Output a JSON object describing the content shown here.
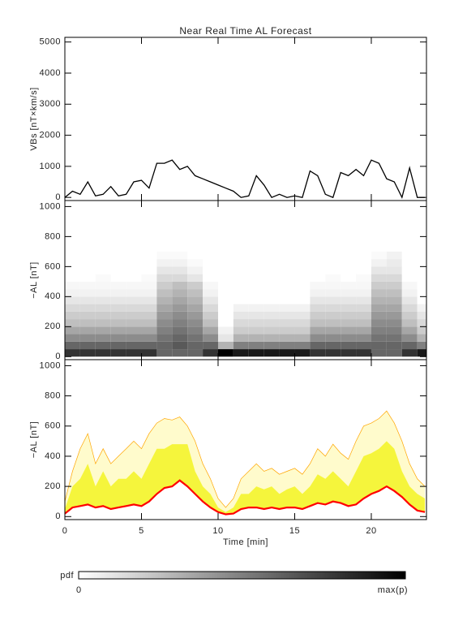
{
  "chart_data": [
    {
      "type": "line",
      "title": "Near Real Time AL Forecast",
      "ylabel": "VBs [nT×km/s]",
      "color": "#000000",
      "x": [
        0,
        0.5,
        1,
        1.5,
        2,
        2.5,
        3,
        3.5,
        4,
        4.5,
        5,
        5.5,
        6,
        6.5,
        7,
        7.5,
        8,
        8.5,
        9,
        9.5,
        10,
        10.5,
        11,
        11.5,
        12,
        12.5,
        13,
        13.5,
        14,
        14.5,
        15,
        15.5,
        16,
        16.5,
        17,
        17.5,
        18,
        18.5,
        19,
        19.5,
        20,
        20.5,
        21,
        21.5,
        22,
        22.5,
        23,
        23.5
      ],
      "values": [
        0,
        200,
        100,
        500,
        50,
        100,
        350,
        50,
        100,
        500,
        550,
        300,
        1100,
        1100,
        1200,
        900,
        1000,
        700,
        600,
        500,
        400,
        300,
        200,
        0,
        50,
        700,
        400,
        0,
        100,
        0,
        50,
        0,
        850,
        700,
        100,
        0,
        800,
        700,
        900,
        700,
        1200,
        1100,
        600,
        500,
        0,
        950,
        0,
        0
      ],
      "xlim": [
        0,
        23.6
      ],
      "ylim": [
        -100,
        5150
      ],
      "yticks": [
        0,
        1000,
        2000,
        3000,
        4000,
        5000
      ]
    },
    {
      "type": "heatmap",
      "ylabel": "−AL [nT]",
      "xbins": [
        0,
        1,
        2,
        3,
        4,
        5,
        6,
        7,
        8,
        9,
        10,
        11,
        12,
        13,
        14,
        15,
        16,
        17,
        18,
        19,
        20,
        21,
        22,
        23,
        24
      ],
      "ybins": [
        0,
        50,
        100,
        150,
        200,
        250,
        300,
        350,
        400,
        450,
        500,
        550,
        600,
        650,
        700
      ],
      "z": [
        [
          0.8,
          0.6,
          0.45,
          0.35,
          0.25,
          0.2,
          0.15,
          0.1,
          0.05,
          0.03,
          0,
          0,
          0,
          0
        ],
        [
          0.8,
          0.6,
          0.45,
          0.35,
          0.25,
          0.2,
          0.15,
          0.1,
          0.05,
          0.03,
          0,
          0,
          0,
          0
        ],
        [
          0.8,
          0.6,
          0.45,
          0.35,
          0.25,
          0.2,
          0.15,
          0.1,
          0.05,
          0.03,
          0.02,
          0,
          0,
          0
        ],
        [
          0.8,
          0.6,
          0.45,
          0.35,
          0.25,
          0.2,
          0.15,
          0.1,
          0.05,
          0.03,
          0,
          0,
          0,
          0
        ],
        [
          0.8,
          0.6,
          0.45,
          0.35,
          0.25,
          0.2,
          0.15,
          0.1,
          0.05,
          0.03,
          0,
          0,
          0,
          0
        ],
        [
          0.8,
          0.6,
          0.45,
          0.35,
          0.25,
          0.2,
          0.15,
          0.1,
          0.05,
          0.03,
          0.02,
          0,
          0,
          0
        ],
        [
          0.6,
          0.6,
          0.55,
          0.5,
          0.45,
          0.4,
          0.35,
          0.3,
          0.25,
          0.2,
          0.15,
          0.1,
          0.05,
          0.02
        ],
        [
          0.6,
          0.65,
          0.6,
          0.55,
          0.5,
          0.45,
          0.4,
          0.35,
          0.3,
          0.25,
          0.15,
          0.1,
          0.05,
          0.02
        ],
        [
          0.6,
          0.6,
          0.55,
          0.5,
          0.45,
          0.4,
          0.35,
          0.3,
          0.25,
          0.2,
          0.1,
          0.05,
          0.02,
          0
        ],
        [
          0.8,
          0.6,
          0.45,
          0.35,
          0.25,
          0.2,
          0.15,
          0.1,
          0.05,
          0.03,
          0,
          0,
          0,
          0
        ],
        [
          1,
          0.3,
          0.1,
          0.05,
          0,
          0,
          0,
          0,
          0,
          0,
          0,
          0,
          0,
          0
        ],
        [
          0.9,
          0.5,
          0.3,
          0.2,
          0.15,
          0.1,
          0.05,
          0,
          0,
          0,
          0,
          0,
          0,
          0
        ],
        [
          0.9,
          0.5,
          0.3,
          0.2,
          0.15,
          0.1,
          0.05,
          0,
          0,
          0,
          0,
          0,
          0,
          0
        ],
        [
          0.9,
          0.5,
          0.3,
          0.2,
          0.15,
          0.1,
          0.05,
          0,
          0,
          0,
          0,
          0,
          0,
          0
        ],
        [
          0.9,
          0.5,
          0.3,
          0.2,
          0.15,
          0.1,
          0.05,
          0,
          0,
          0,
          0,
          0,
          0,
          0
        ],
        [
          0.9,
          0.5,
          0.3,
          0.2,
          0.15,
          0.1,
          0.05,
          0,
          0,
          0,
          0,
          0,
          0,
          0
        ],
        [
          0.8,
          0.6,
          0.45,
          0.35,
          0.25,
          0.2,
          0.15,
          0.1,
          0.05,
          0.03,
          0,
          0,
          0,
          0
        ],
        [
          0.8,
          0.6,
          0.45,
          0.35,
          0.25,
          0.2,
          0.15,
          0.1,
          0.05,
          0.03,
          0.02,
          0,
          0,
          0
        ],
        [
          0.8,
          0.6,
          0.45,
          0.35,
          0.25,
          0.2,
          0.15,
          0.1,
          0.05,
          0.03,
          0,
          0,
          0,
          0
        ],
        [
          0.8,
          0.6,
          0.45,
          0.35,
          0.25,
          0.2,
          0.15,
          0.1,
          0.05,
          0.03,
          0.02,
          0,
          0,
          0
        ],
        [
          0.6,
          0.6,
          0.55,
          0.5,
          0.45,
          0.4,
          0.35,
          0.3,
          0.25,
          0.2,
          0.15,
          0.1,
          0.05,
          0.02
        ],
        [
          0.6,
          0.6,
          0.55,
          0.5,
          0.45,
          0.4,
          0.35,
          0.3,
          0.25,
          0.2,
          0.15,
          0.1,
          0.08,
          0.05
        ],
        [
          0.8,
          0.6,
          0.45,
          0.35,
          0.25,
          0.2,
          0.15,
          0.1,
          0.05,
          0.03,
          0,
          0,
          0,
          0
        ],
        [
          0.9,
          0.5,
          0.3,
          0.2,
          0.15,
          0.1,
          0.05,
          0,
          0,
          0,
          0,
          0,
          0,
          0
        ]
      ],
      "xlim": [
        0,
        23.6
      ],
      "ylim": [
        -20,
        1040
      ],
      "yticks": [
        0,
        200,
        400,
        600,
        800,
        1000
      ],
      "colorbar": {
        "label": "pdf",
        "min_label": "0",
        "max_label": "max(p)"
      }
    },
    {
      "type": "area",
      "ylabel": "−AL [nT]",
      "xlabel": "Time [min]",
      "x": [
        0,
        0.5,
        1,
        1.5,
        2,
        2.5,
        3,
        3.5,
        4,
        4.5,
        5,
        5.5,
        6,
        6.5,
        7,
        7.5,
        8,
        8.5,
        9,
        9.5,
        10,
        10.5,
        11,
        11.5,
        12,
        12.5,
        13,
        13.5,
        14,
        14.5,
        15,
        15.5,
        16,
        16.5,
        17,
        17.5,
        18,
        18.5,
        19,
        19.5,
        20,
        20.5,
        21,
        21.5,
        22,
        22.5,
        23,
        23.5
      ],
      "series": [
        {
          "color": "#ff0000",
          "values": [
            20,
            60,
            70,
            80,
            60,
            70,
            50,
            60,
            70,
            80,
            70,
            100,
            150,
            190,
            200,
            240,
            200,
            150,
            100,
            60,
            30,
            15,
            20,
            50,
            60,
            60,
            50,
            60,
            50,
            60,
            60,
            50,
            70,
            90,
            80,
            100,
            90,
            70,
            80,
            120,
            150,
            170,
            200,
            170,
            130,
            80,
            40,
            30
          ]
        },
        {
          "color": "#f5f53c",
          "values": [
            50,
            200,
            250,
            350,
            200,
            300,
            200,
            250,
            250,
            300,
            250,
            350,
            450,
            450,
            480,
            480,
            480,
            300,
            200,
            150,
            60,
            30,
            60,
            150,
            150,
            200,
            180,
            200,
            150,
            180,
            200,
            150,
            200,
            280,
            250,
            300,
            250,
            200,
            300,
            400,
            420,
            450,
            500,
            450,
            300,
            200,
            150,
            120
          ]
        },
        {
          "color": "#ffa500",
          "values": [
            100,
            300,
            450,
            550,
            350,
            450,
            350,
            400,
            450,
            500,
            450,
            550,
            620,
            650,
            640,
            660,
            600,
            500,
            350,
            250,
            120,
            60,
            120,
            250,
            300,
            350,
            300,
            320,
            280,
            300,
            320,
            280,
            350,
            450,
            400,
            480,
            420,
            380,
            500,
            600,
            620,
            650,
            700,
            620,
            500,
            350,
            250,
            200
          ]
        }
      ],
      "xlim": [
        0,
        23.6
      ],
      "xticks": [
        0,
        5,
        10,
        15,
        20
      ],
      "ylim": [
        -20,
        1040
      ],
      "yticks": [
        0,
        200,
        400,
        600,
        800,
        1000
      ]
    }
  ]
}
